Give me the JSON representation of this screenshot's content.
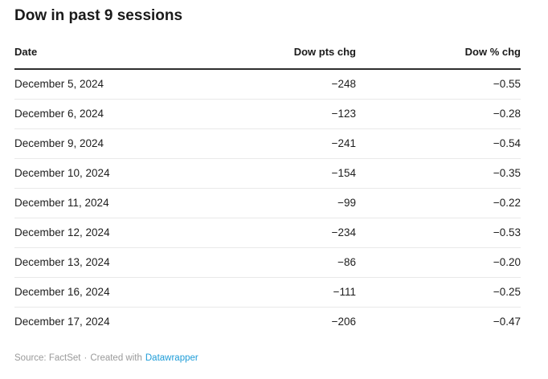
{
  "chart_data": {
    "type": "table",
    "title": "Dow in past 9 sessions",
    "columns": [
      "Date",
      "Dow pts chg",
      "Dow % chg"
    ],
    "rows": [
      {
        "date": "December 5, 2024",
        "pts": "−248",
        "pct": "−0.55"
      },
      {
        "date": "December 6, 2024",
        "pts": "−123",
        "pct": "−0.28"
      },
      {
        "date": "December 9, 2024",
        "pts": "−241",
        "pct": "−0.54"
      },
      {
        "date": "December 10, 2024",
        "pts": "−154",
        "pct": "−0.35"
      },
      {
        "date": "December 11, 2024",
        "pts": "−99",
        "pct": "−0.22"
      },
      {
        "date": "December 12, 2024",
        "pts": "−234",
        "pct": "−0.53"
      },
      {
        "date": "December 13, 2024",
        "pts": "−86",
        "pct": "−0.20"
      },
      {
        "date": "December 16, 2024",
        "pts": "−111",
        "pct": "−0.25"
      },
      {
        "date": "December 17, 2024",
        "pts": "−206",
        "pct": "−0.47"
      }
    ],
    "numeric": {
      "dow_pts_chg": [
        -248,
        -123,
        -241,
        -154,
        -99,
        -234,
        -86,
        -111,
        -206
      ],
      "dow_pct_chg": [
        -0.55,
        -0.28,
        -0.54,
        -0.35,
        -0.22,
        -0.53,
        -0.2,
        -0.25,
        -0.47
      ]
    },
    "layout": {
      "grid": "horizontal-row-dividers",
      "header_rule": true,
      "legend": "none"
    }
  },
  "footer": {
    "source": "Source: FactSet",
    "separator": "·",
    "created_with": "Created with",
    "link_label": "Datawrapper"
  },
  "colors": {
    "text": "#1d1d1d",
    "header_rule": "#2e2e2e",
    "row_divider": "#e9e9e9",
    "muted_gray": "#9a9a9a",
    "link_blue": "#1d9cd8",
    "background": "#ffffff"
  }
}
